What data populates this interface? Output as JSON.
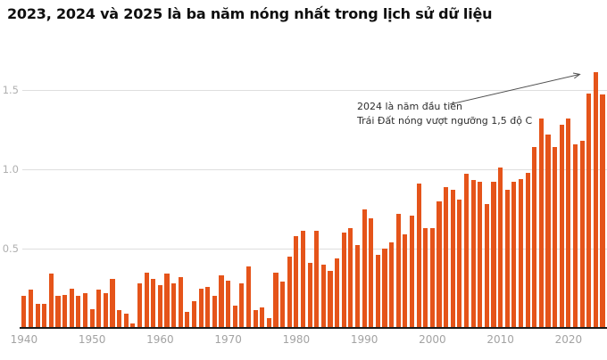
{
  "title": "2023, 2024 và 2025 là ba năm nóng nhất trong lịch sử dữ liệu",
  "annotation": {
    "line1": "2024 là năm đầu tiên",
    "line2": "Trái Đất nóng vượt ngưỡng 1,5 độ C"
  },
  "colors": {
    "bar": "#e5541a",
    "gridline": "#dedede",
    "axis_line": "#1a1a1a",
    "y_tick_label": "#b0b0b0",
    "x_tick_label": "#a3a3a3",
    "title_text": "#0f0f0f",
    "annotation_text": "#2e2e2e",
    "arrow": "#4f4f4f",
    "background": "#ffffff"
  },
  "chart_data": {
    "type": "bar",
    "title": "2023, 2024 và 2025 là ba năm nóng nhất trong lịch sử dữ liệu",
    "xlabel": "",
    "ylabel": "",
    "ylim": [
      0,
      1.7
    ],
    "y_ticks": [
      {
        "value": 0.5,
        "label": "0.5"
      },
      {
        "value": 1.0,
        "label": "1.0"
      },
      {
        "value": 1.5,
        "label": "1.5"
      }
    ],
    "x_ticks": [
      1940,
      1950,
      1960,
      1970,
      1980,
      1990,
      2000,
      2010,
      2020
    ],
    "grid": "horizontal",
    "legend": "none",
    "points": [
      [
        1940,
        0.2
      ],
      [
        1941,
        0.24
      ],
      [
        1942,
        0.15
      ],
      [
        1943,
        0.15
      ],
      [
        1944,
        0.34
      ],
      [
        1945,
        0.2
      ],
      [
        1946,
        0.21
      ],
      [
        1947,
        0.25
      ],
      [
        1948,
        0.2
      ],
      [
        1949,
        0.22
      ],
      [
        1950,
        0.12
      ],
      [
        1951,
        0.24
      ],
      [
        1952,
        0.22
      ],
      [
        1953,
        0.31
      ],
      [
        1954,
        0.11
      ],
      [
        1955,
        0.09
      ],
      [
        1956,
        0.03
      ],
      [
        1957,
        0.28
      ],
      [
        1958,
        0.35
      ],
      [
        1959,
        0.31
      ],
      [
        1960,
        0.27
      ],
      [
        1961,
        0.34
      ],
      [
        1962,
        0.28
      ],
      [
        1963,
        0.32
      ],
      [
        1964,
        0.1
      ],
      [
        1965,
        0.17
      ],
      [
        1966,
        0.25
      ],
      [
        1967,
        0.26
      ],
      [
        1968,
        0.2
      ],
      [
        1969,
        0.33
      ],
      [
        1970,
        0.3
      ],
      [
        1971,
        0.14
      ],
      [
        1972,
        0.28
      ],
      [
        1973,
        0.39
      ],
      [
        1974,
        0.11
      ],
      [
        1975,
        0.13
      ],
      [
        1976,
        0.06
      ],
      [
        1977,
        0.35
      ],
      [
        1978,
        0.29
      ],
      [
        1979,
        0.45
      ],
      [
        1980,
        0.58
      ],
      [
        1981,
        0.61
      ],
      [
        1982,
        0.41
      ],
      [
        1983,
        0.61
      ],
      [
        1984,
        0.4
      ],
      [
        1985,
        0.36
      ],
      [
        1986,
        0.44
      ],
      [
        1987,
        0.6
      ],
      [
        1988,
        0.63
      ],
      [
        1989,
        0.52
      ],
      [
        1990,
        0.75
      ],
      [
        1991,
        0.69
      ],
      [
        1992,
        0.46
      ],
      [
        1993,
        0.5
      ],
      [
        1994,
        0.54
      ],
      [
        1995,
        0.72
      ],
      [
        1996,
        0.59
      ],
      [
        1997,
        0.71
      ],
      [
        1998,
        0.91
      ],
      [
        1999,
        0.63
      ],
      [
        2000,
        0.63
      ],
      [
        2001,
        0.8
      ],
      [
        2002,
        0.89
      ],
      [
        2003,
        0.87
      ],
      [
        2004,
        0.81
      ],
      [
        2005,
        0.97
      ],
      [
        2006,
        0.93
      ],
      [
        2007,
        0.92
      ],
      [
        2008,
        0.78
      ],
      [
        2009,
        0.92
      ],
      [
        2010,
        1.01
      ],
      [
        2011,
        0.87
      ],
      [
        2012,
        0.92
      ],
      [
        2013,
        0.94
      ],
      [
        2014,
        0.98
      ],
      [
        2015,
        1.14
      ],
      [
        2016,
        1.32
      ],
      [
        2017,
        1.22
      ],
      [
        2018,
        1.14
      ],
      [
        2019,
        1.28
      ],
      [
        2020,
        1.32
      ],
      [
        2021,
        1.16
      ],
      [
        2022,
        1.18
      ],
      [
        2023,
        1.48
      ],
      [
        2024,
        1.61
      ],
      [
        2025,
        1.47
      ]
    ]
  }
}
